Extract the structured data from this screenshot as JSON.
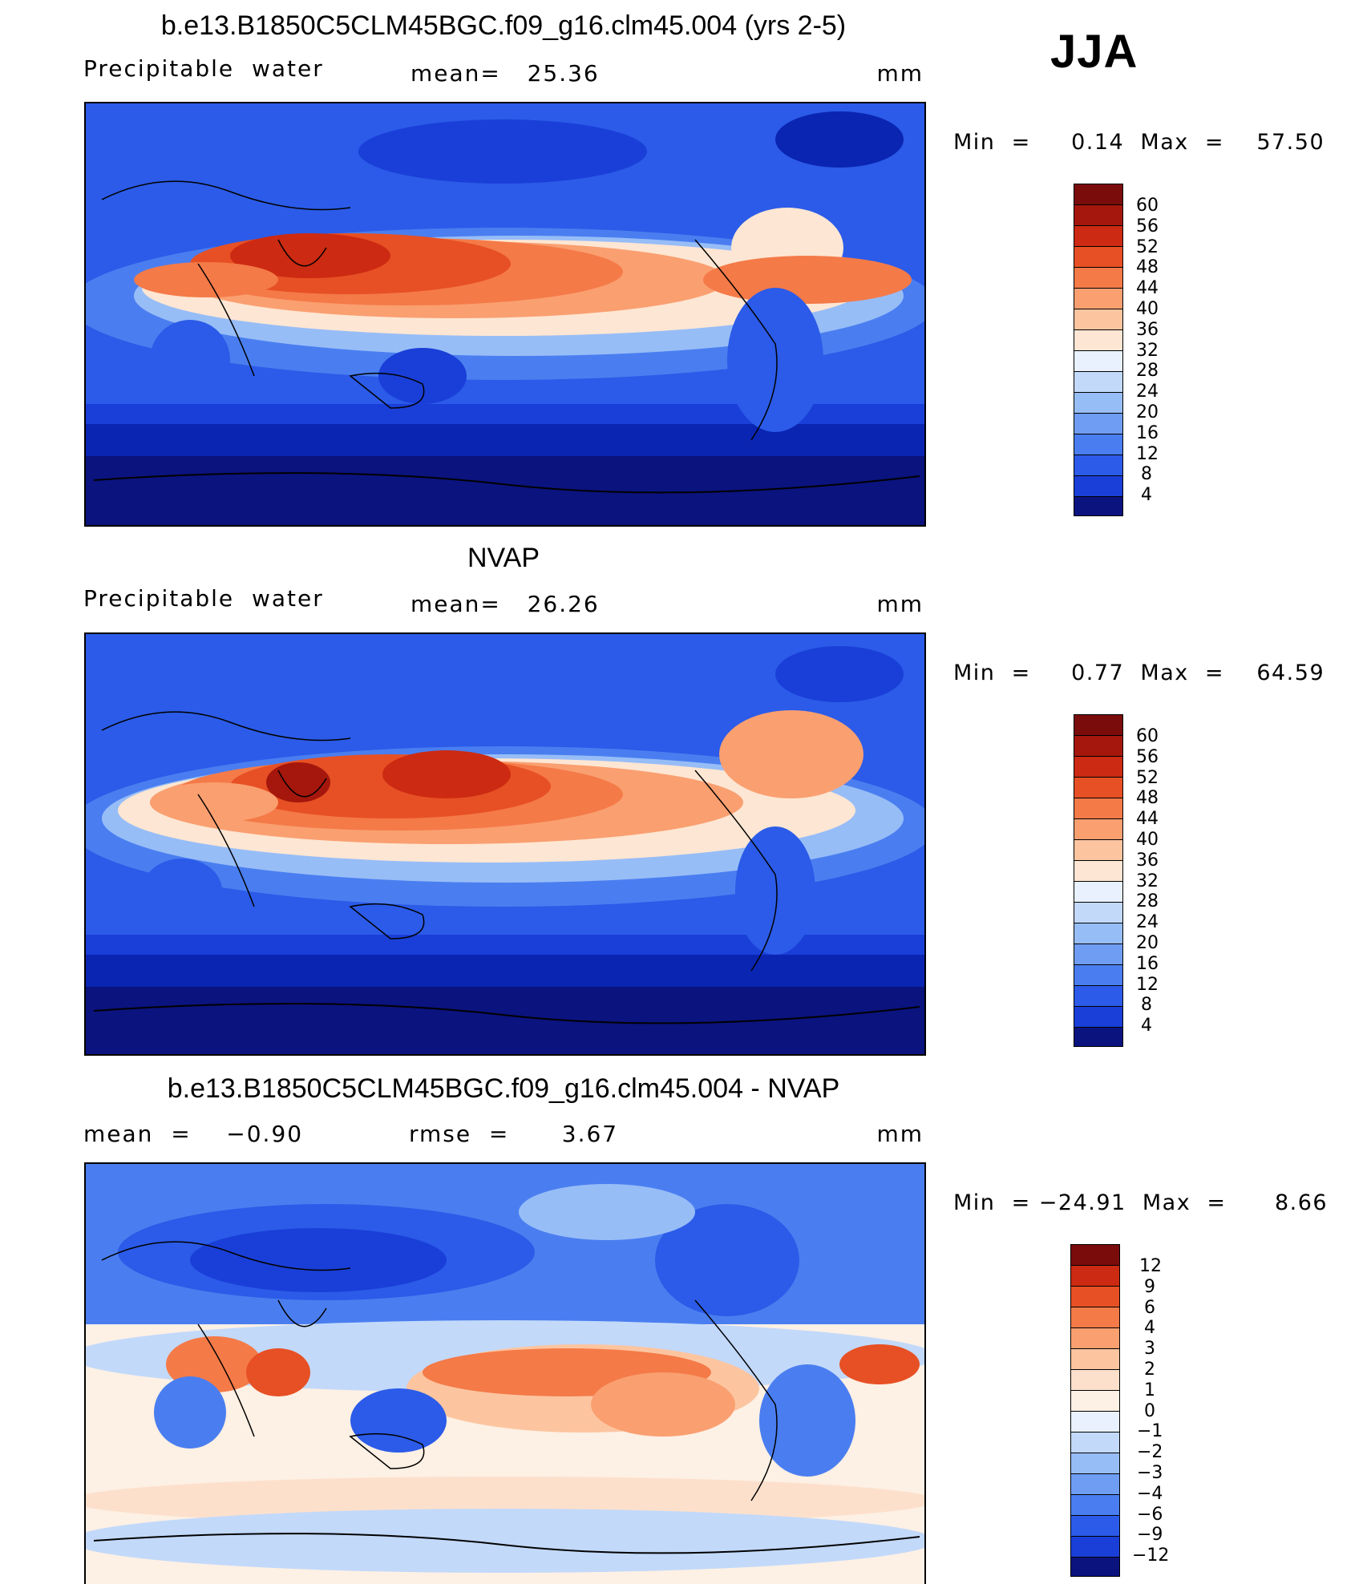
{
  "season": "JJA",
  "colors": {
    "pw_levels": [
      "#0a137e",
      "#0a25b2",
      "#1a3fd8",
      "#2b5be8",
      "#4a7ef0",
      "#6f9df4",
      "#97bdf7",
      "#c2d9fa",
      "#e8f1fd",
      "#fde6d3",
      "#fcc5a0",
      "#fa9f70",
      "#f47a48",
      "#e75024",
      "#cc2a12",
      "#a5170d",
      "#7a0c0c"
    ],
    "diff_levels": [
      "#0a137e",
      "#0a25b2",
      "#1a3fd8",
      "#2b5be8",
      "#4a7ef0",
      "#6f9df4",
      "#97bdf7",
      "#c2d9fa",
      "#e8f1fd",
      "#fdf0e4",
      "#fde0cc",
      "#fcc5a0",
      "#fa9f70",
      "#f47a48",
      "#e75024",
      "#cc2a12",
      "#7a0c0c"
    ]
  },
  "panels": [
    {
      "title": "b.e13.B1850C5CLM45BGC.f09_g16.clm45.004 (yrs 2-5)",
      "left_label": "Precipitable  water",
      "center_label": "mean=   25.36",
      "units": "mm",
      "minmax": "Min  =     0.14  Max  =    57.50",
      "colorbar_labels": [
        "60",
        "56",
        "52",
        "48",
        "44",
        "40",
        "36",
        "32",
        "28",
        "24",
        "20",
        "16",
        "12",
        "8",
        "4"
      ]
    },
    {
      "title": "NVAP",
      "left_label": "Precipitable  water",
      "center_label": "mean=   26.26",
      "units": "mm",
      "minmax": "Min  =     0.77  Max  =    64.59",
      "colorbar_labels": [
        "60",
        "56",
        "52",
        "48",
        "44",
        "40",
        "36",
        "32",
        "28",
        "24",
        "20",
        "16",
        "12",
        "8",
        "4"
      ]
    },
    {
      "title": "b.e13.B1850C5CLM45BGC.f09_g16.clm45.004 - NVAP",
      "left_label": "mean  =    −0.90",
      "center_label": "rmse  =      3.67",
      "units": "mm",
      "minmax": "Min  = −24.91  Max  =      8.66",
      "colorbar_labels": [
        "12",
        "9",
        "6",
        "4",
        "3",
        "2",
        "1",
        "0",
        "−1",
        "−2",
        "−3",
        "−4",
        "−6",
        "−9",
        "−12"
      ]
    }
  ]
}
